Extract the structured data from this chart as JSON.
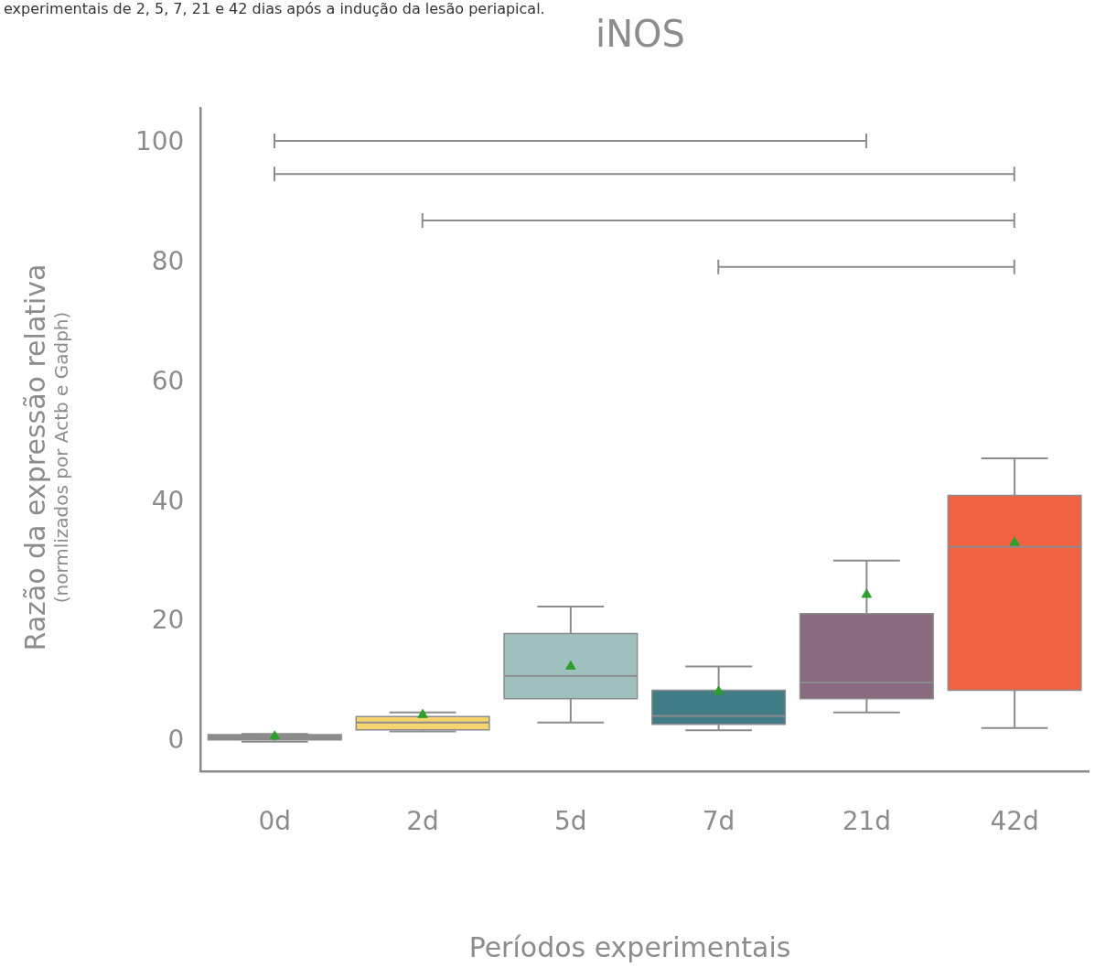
{
  "chart_data": {
    "type": "box",
    "title": "iNOS",
    "xlabel": "Períodos experimentais",
    "ylabel": "Razão da expressão relativa\n(normlizados por Actb e Gadph)",
    "annotations": [
      "experimentais de 2, 5, 7, 21 e 42 dias após a indução da lesão periapical."
    ],
    "categories": [
      "0d",
      "2d",
      "5d",
      "7d",
      "21d",
      "42d"
    ],
    "colors": [
      "#8c8c8c",
      "#f5d46e",
      "#a0c0bf",
      "#3f7c85",
      "#8a6a80",
      "#f06242"
    ],
    "boxes": [
      {
        "low": 0,
        "q1": 0.3,
        "median": 0.7,
        "q3": 1.2,
        "high": 1.3,
        "mean": 0.9
      },
      {
        "low": 1.7,
        "q1": 2.0,
        "median": 3.2,
        "q3": 4.2,
        "high": 4.9,
        "mean": 4.5
      },
      {
        "low": 3.2,
        "q1": 7.2,
        "median": 11.0,
        "q3": 18.1,
        "high": 22.6,
        "mean": 12.6
      },
      {
        "low": 1.9,
        "q1": 2.9,
        "median": 4.3,
        "q3": 8.6,
        "high": 12.6,
        "mean": 8.4
      },
      {
        "low": 4.9,
        "q1": 7.2,
        "median": 9.9,
        "q3": 21.4,
        "high": 30.3,
        "mean": 24.6
      },
      {
        "low": 2.3,
        "q1": 8.6,
        "median": 32.6,
        "q3": 41.2,
        "high": 47.4,
        "mean": 33.3
      }
    ],
    "ylim": [
      -5,
      106
    ],
    "yticks": [
      0,
      20,
      40,
      60,
      80,
      100
    ],
    "marker": "triangle"
  }
}
